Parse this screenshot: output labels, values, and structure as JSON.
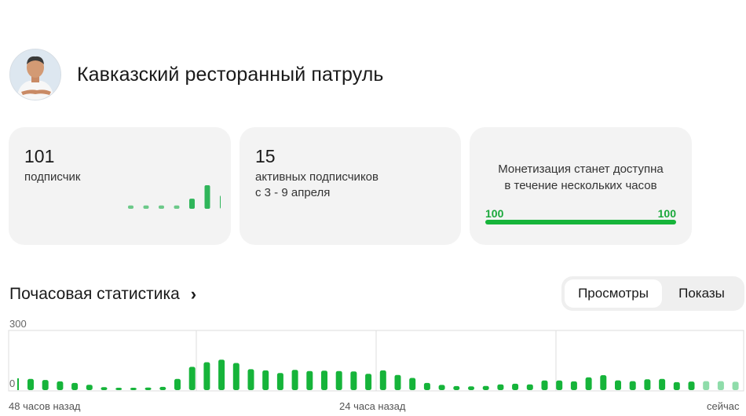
{
  "channel": {
    "title": "Кавказский ресторанный патруль",
    "avatar_icon": "person-avatar"
  },
  "cards": {
    "subscribers": {
      "value": "101",
      "label": "подписчик",
      "trend": [
        1,
        1,
        1,
        1,
        3,
        7,
        4
      ]
    },
    "active": {
      "value": "15",
      "label_line1": "активных подписчиков",
      "label_line2": "с 3 - 9 апреля"
    },
    "monetization": {
      "line1": "Монетизация станет доступна",
      "line2": "в течение нескольких часов",
      "left": "100",
      "right": "100",
      "progress": 1.0
    }
  },
  "hourly": {
    "title": "Почасовая статистика",
    "tabs": [
      {
        "label": "Просмотры",
        "active": true
      },
      {
        "label": "Показы",
        "active": false
      }
    ]
  },
  "colors": {
    "accent": "#16b43a",
    "light": "#8fdcaa"
  },
  "chart_data": {
    "type": "bar",
    "ylim": [
      0,
      300
    ],
    "y_ticks": [
      "300",
      "0"
    ],
    "x_labels": [
      "48 часов назад",
      "24 часа назад",
      "сейчас"
    ],
    "values": [
      56,
      51,
      44,
      36,
      27,
      15,
      12,
      10,
      13,
      16,
      56,
      117,
      140,
      153,
      136,
      105,
      99,
      86,
      102,
      96,
      98,
      96,
      94,
      82,
      99,
      76,
      61,
      36,
      26,
      20,
      19,
      21,
      29,
      32,
      29,
      48,
      48,
      44,
      64,
      75,
      49,
      45,
      54,
      56,
      40,
      43,
      45,
      45,
      42,
      14,
      13
    ],
    "highlight_from_index": 46,
    "grid": "vertical",
    "legend": "none"
  }
}
